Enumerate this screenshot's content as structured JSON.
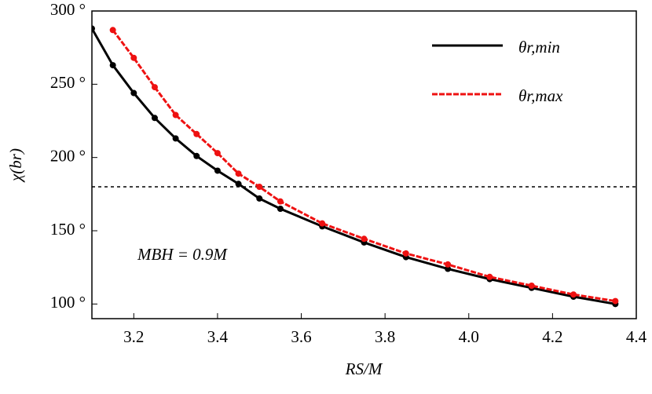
{
  "chart_data": {
    "type": "line",
    "xlabel": "RS/M",
    "ylabel": "χ(br)",
    "annotation": "MBH = 0.9M",
    "hline": 180,
    "legend": "top-right",
    "series": [
      {
        "name": "θr,min",
        "color": "#000000",
        "x": [
          3.1,
          3.15,
          3.2,
          3.25,
          3.3,
          3.35,
          3.4,
          3.45,
          3.5,
          3.55,
          3.65,
          3.75,
          3.85,
          3.95,
          4.05,
          4.15,
          4.25,
          4.35
        ],
        "values": [
          288,
          263,
          244,
          227,
          213,
          201,
          191,
          182,
          172,
          165,
          153,
          142,
          132,
          124,
          117,
          111,
          105,
          100
        ]
      },
      {
        "name": "θr,max",
        "color": "#ee1111",
        "x": [
          3.15,
          3.2,
          3.25,
          3.3,
          3.35,
          3.4,
          3.45,
          3.5,
          3.55,
          3.65,
          3.75,
          3.85,
          3.95,
          4.05,
          4.15,
          4.25,
          4.35
        ],
        "values": [
          287,
          268,
          248,
          229,
          216,
          203,
          189,
          180,
          170,
          155,
          144.5,
          134.5,
          127,
          118.5,
          112.5,
          106.5,
          102
        ]
      }
    ],
    "xlim": [
      3.1,
      4.4
    ],
    "xticks": [
      3.2,
      3.4,
      3.6,
      3.8,
      {
        "value": 4,
        "label": "4.0"
      },
      4.2,
      4.4
    ],
    "ylim": [
      90,
      300
    ],
    "yticks": [
      {
        "value": 100,
        "label": "100 °"
      },
      {
        "value": 150,
        "label": "150 °"
      },
      {
        "value": 200,
        "label": "200 °"
      },
      {
        "value": 250,
        "label": "250 °"
      },
      {
        "value": 300,
        "label": "300 °"
      }
    ]
  }
}
